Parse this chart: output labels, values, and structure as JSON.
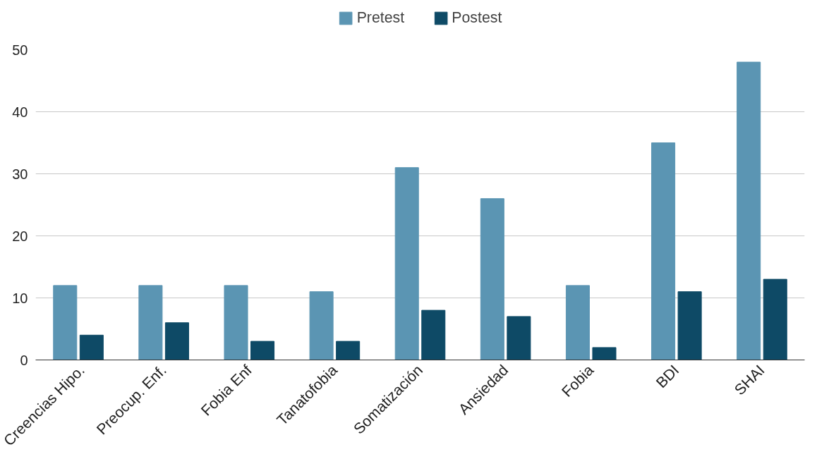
{
  "chart_data": {
    "type": "bar",
    "categories": [
      "Creencias Hipo.",
      "Preocup. Enf.",
      "Fobia Enf",
      "Tanatofobia",
      "Somatización",
      "Ansiedad",
      "Fobia",
      "BDI",
      "SHAI"
    ],
    "series": [
      {
        "name": "Pretest",
        "color": "#5b95b3",
        "values": [
          12,
          12,
          12,
          11,
          31,
          26,
          12,
          35,
          48
        ]
      },
      {
        "name": "Postest",
        "color": "#0e4a66",
        "values": [
          4,
          6,
          3,
          3,
          8,
          7,
          2,
          11,
          13
        ]
      }
    ],
    "ylim": [
      0,
      50
    ],
    "yticks": [
      0,
      10,
      20,
      30,
      40,
      50
    ],
    "grid": "y",
    "legend": "top"
  }
}
